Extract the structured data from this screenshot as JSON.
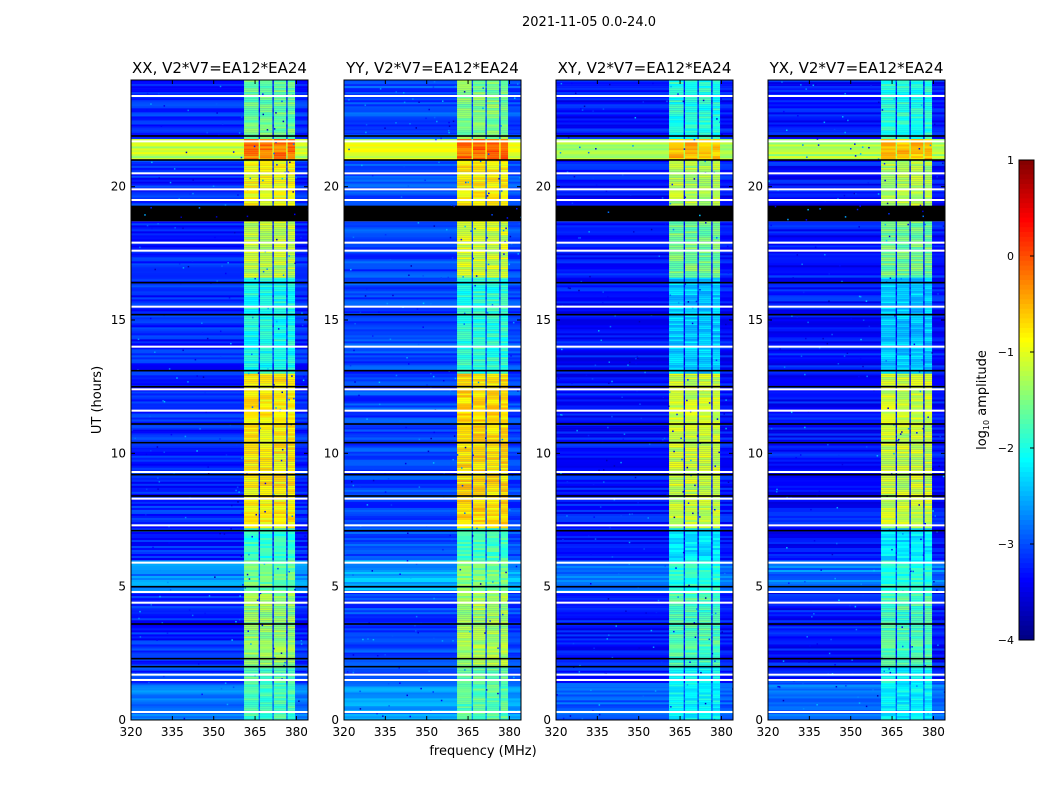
{
  "chart_data": {
    "type": "heatmap",
    "suptitle": "2021-11-05 0.0-24.0",
    "xlabel": "frequency (MHz)",
    "ylabel": "UT (hours)",
    "xlim": [
      320,
      384.2
    ],
    "ylim": [
      0,
      24
    ],
    "xticks": [
      320,
      335,
      350,
      365,
      380
    ],
    "yticks": [
      0,
      5,
      10,
      15,
      20
    ],
    "colorbar": {
      "label_main": "log",
      "label_sub": "10",
      "label_rest": " amplitude",
      "range": [
        -4,
        1
      ],
      "ticks": [
        1,
        0,
        -1,
        -2,
        -3,
        -4
      ],
      "tick_labels": [
        "1",
        "0",
        "−1",
        "−2",
        "−3",
        "−4"
      ],
      "colormap": "jet"
    },
    "rfi_subbands_mhz": [
      [
        361,
        366.3
      ],
      [
        366.8,
        371.3
      ],
      [
        371.8,
        376.3
      ],
      [
        376.8,
        379.5
      ]
    ],
    "segments_hours": [
      {
        "t": [
          0,
          1.4
        ],
        "bg": -2.8,
        "rfi": -1.8
      },
      {
        "t": [
          1.4,
          2.0
        ],
        "bg": -3.1,
        "rfi": -1.7
      },
      {
        "t": [
          2.0,
          4.8
        ],
        "bg": -3.2,
        "rfi": -1.4
      },
      {
        "t": [
          4.8,
          6.0
        ],
        "bg": -2.7,
        "rfi": -1.6
      },
      {
        "t": [
          6.0,
          7.2
        ],
        "bg": -3.2,
        "rfi": -1.9
      },
      {
        "t": [
          7.2,
          13.0
        ],
        "bg": -3.2,
        "rfi": -0.8
      },
      {
        "t": [
          13.0,
          16.6
        ],
        "bg": -3.2,
        "rfi": -2.0
      },
      {
        "t": [
          16.6,
          18.7
        ],
        "bg": -3.2,
        "rfi": -1.2
      },
      {
        "t": [
          18.7,
          19.3
        ],
        "bg": "flag_black",
        "rfi": "flag_black"
      },
      {
        "t": [
          19.3,
          21.0
        ],
        "bg": -3.2,
        "rfi": -0.9
      },
      {
        "t": [
          21.0,
          21.8
        ],
        "bg": -1.2,
        "rfi": -0.2
      },
      {
        "t": [
          21.8,
          24.0
        ],
        "bg": -3.2,
        "rfi": -1.6
      }
    ],
    "flag_white_hours": [
      0.3,
      1.5,
      1.7,
      4.4,
      4.8,
      5.9,
      7.3,
      8.3,
      9.3,
      11.6,
      12.4,
      14.0,
      15.5,
      17.6,
      17.9,
      19.5,
      19.9,
      20.5,
      21.7,
      23.4
    ],
    "flag_black_hours": [
      2.0,
      2.3,
      3.6,
      5.0,
      7.1,
      8.4,
      9.2,
      10.4,
      11.1,
      12.5,
      13.1,
      15.2,
      16.4,
      21.0,
      21.9
    ],
    "panels": [
      {
        "title": "XX, V2*V7=EA12*EA24",
        "bg_offset": 0.0,
        "rfi_offset": 0.0
      },
      {
        "title": "YY, V2*V7=EA12*EA24",
        "bg_offset": 0.15,
        "rfi_offset": 0.1
      },
      {
        "title": "XY, V2*V7=EA12*EA24",
        "bg_offset": -0.1,
        "rfi_offset": -0.35
      },
      {
        "title": "YX, V2*V7=EA12*EA24",
        "bg_offset": -0.1,
        "rfi_offset": -0.35
      }
    ]
  }
}
